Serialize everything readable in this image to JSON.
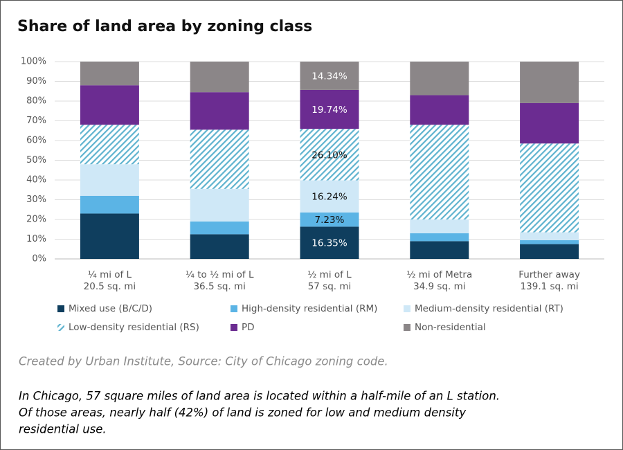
{
  "chart_data": {
    "type": "stacked_bar",
    "title": "Share of land area by zoning class",
    "categories": [
      "¼ mi of L",
      "¼ to ½ mi of L",
      "½ mi of L",
      "½ mi of Metra",
      "Further away"
    ],
    "category_areas": [
      "20.5 sq. mi",
      "36.5 sq. mi",
      "57 sq. mi",
      "34.9 sq. mi",
      "139.1 sq. mi"
    ],
    "series": [
      {
        "name": "Mixed use (B/C/D)",
        "color": "#0f3e5e",
        "label_color": "#ffffff",
        "values": [
          23,
          12.5,
          16.35,
          9,
          7.5
        ],
        "value_labels": [
          null,
          null,
          "16.35%",
          null,
          null
        ]
      },
      {
        "name": "High-density residential (RM)",
        "color": "#5bb4e5",
        "label_color": "#111111",
        "values": [
          9,
          6.5,
          7.23,
          4,
          2
        ],
        "value_labels": [
          null,
          null,
          "7.23%",
          null,
          null
        ]
      },
      {
        "name": "Medium-density residential (RT)",
        "color": "#cfe8f7",
        "label_color": "#111111",
        "values": [
          16,
          16.5,
          16.24,
          7,
          4
        ],
        "value_labels": [
          null,
          null,
          "16.24%",
          null,
          null
        ]
      },
      {
        "name": "Low-density residential (RS)",
        "color": "#5fb3cf",
        "hatch": true,
        "label_color": "#111111",
        "values": [
          20,
          30,
          26.1,
          48,
          45
        ],
        "value_labels": [
          null,
          null,
          "26.10%",
          null,
          null
        ]
      },
      {
        "name": "PD",
        "color": "#6b2c91",
        "label_color": "#ffffff",
        "values": [
          20,
          19,
          19.74,
          15,
          20.5
        ],
        "value_labels": [
          null,
          null,
          "19.74%",
          null,
          null
        ]
      },
      {
        "name": "Non-residential",
        "color": "#8b8688",
        "label_color": "#ffffff",
        "values": [
          12,
          15.5,
          14.34,
          17,
          21
        ],
        "value_labels": [
          null,
          null,
          "14.34%",
          null,
          null
        ]
      }
    ],
    "ylim": [
      0,
      100
    ],
    "yticks": [
      {
        "value": 0,
        "label": "0%"
      },
      {
        "value": 10,
        "label": "10%"
      },
      {
        "value": 20,
        "label": "20%"
      },
      {
        "value": 30,
        "label": "30%"
      },
      {
        "value": 40,
        "label": "40%"
      },
      {
        "value": 50,
        "label": "50%"
      },
      {
        "value": 60,
        "label": "60%"
      },
      {
        "value": 70,
        "label": "70%"
      },
      {
        "value": 80,
        "label": "80%"
      },
      {
        "value": 90,
        "label": "90%"
      },
      {
        "value": 100,
        "label": "100%"
      }
    ],
    "grid": true,
    "legend": "bottom",
    "source": "Created by Urban Institute, Source: City of Chicago zoning code.",
    "note_lines": [
      "In Chicago, 57 square miles of land area is located within a half-mile of an L station.",
      "Of those areas, nearly half (42%) of land is zoned for low and medium density",
      "residential use."
    ]
  }
}
